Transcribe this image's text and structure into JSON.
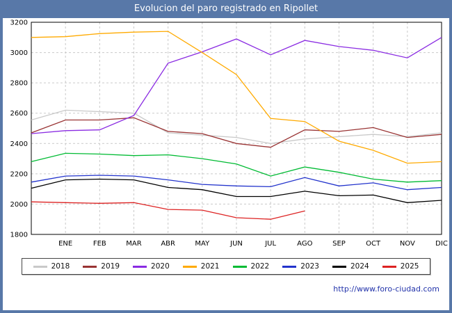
{
  "chart_data": {
    "type": "line",
    "title": "Evolucion del paro registrado en Ripollet",
    "x_labels": [
      "",
      "ENE",
      "FEB",
      "MAR",
      "ABR",
      "MAY",
      "JUN",
      "JUL",
      "AGO",
      "SEP",
      "OCT",
      "NOV",
      "DIC"
    ],
    "xlabel": "",
    "ylabel": "",
    "ylim": [
      1800,
      3200
    ],
    "yticks": [
      1800,
      2000,
      2200,
      2400,
      2600,
      2800,
      3000,
      3200
    ],
    "grid": true,
    "legend_position": "bottom",
    "series": [
      {
        "name": "2018",
        "color": "#c9c9c9",
        "values": [
          2555,
          2620,
          2610,
          2600,
          2470,
          2455,
          2440,
          2400,
          2430,
          2445,
          2460,
          2445,
          2470
        ]
      },
      {
        "name": "2019",
        "color": "#993333",
        "values": [
          2470,
          2555,
          2555,
          2570,
          2480,
          2465,
          2400,
          2375,
          2490,
          2480,
          2505,
          2440,
          2460
        ]
      },
      {
        "name": "2020",
        "color": "#8a2be2",
        "values": [
          2465,
          2485,
          2490,
          2585,
          2930,
          3005,
          3090,
          2985,
          3080,
          3040,
          3015,
          2965,
          3100
        ]
      },
      {
        "name": "2021",
        "color": "#ffaa00",
        "values": [
          3100,
          3105,
          3125,
          3135,
          3140,
          3000,
          2855,
          2565,
          2545,
          2415,
          2355,
          2270,
          2280
        ]
      },
      {
        "name": "2022",
        "color": "#00bb33",
        "values": [
          2280,
          2335,
          2330,
          2320,
          2325,
          2300,
          2265,
          2185,
          2245,
          2210,
          2165,
          2145,
          2155
        ]
      },
      {
        "name": "2023",
        "color": "#2233cc",
        "values": [
          2145,
          2185,
          2190,
          2185,
          2160,
          2130,
          2120,
          2115,
          2175,
          2120,
          2140,
          2095,
          2110
        ]
      },
      {
        "name": "2024",
        "color": "#000000",
        "values": [
          2105,
          2160,
          2165,
          2160,
          2110,
          2095,
          2050,
          2050,
          2085,
          2055,
          2060,
          2010,
          2025
        ]
      },
      {
        "name": "2025",
        "color": "#dd2222",
        "values": [
          2015,
          2010,
          2005,
          2010,
          1965,
          1960,
          1910,
          1900,
          1955
        ]
      }
    ]
  },
  "footer": {
    "url": "http://www.foro-ciudad.com"
  },
  "colors": {
    "frame_bg": "#5878a8",
    "title_text": "#ffffff",
    "url_text": "#2233aa",
    "grid": "#c9c9c9",
    "plot_border": "#000000",
    "legend_border": "#444444"
  }
}
